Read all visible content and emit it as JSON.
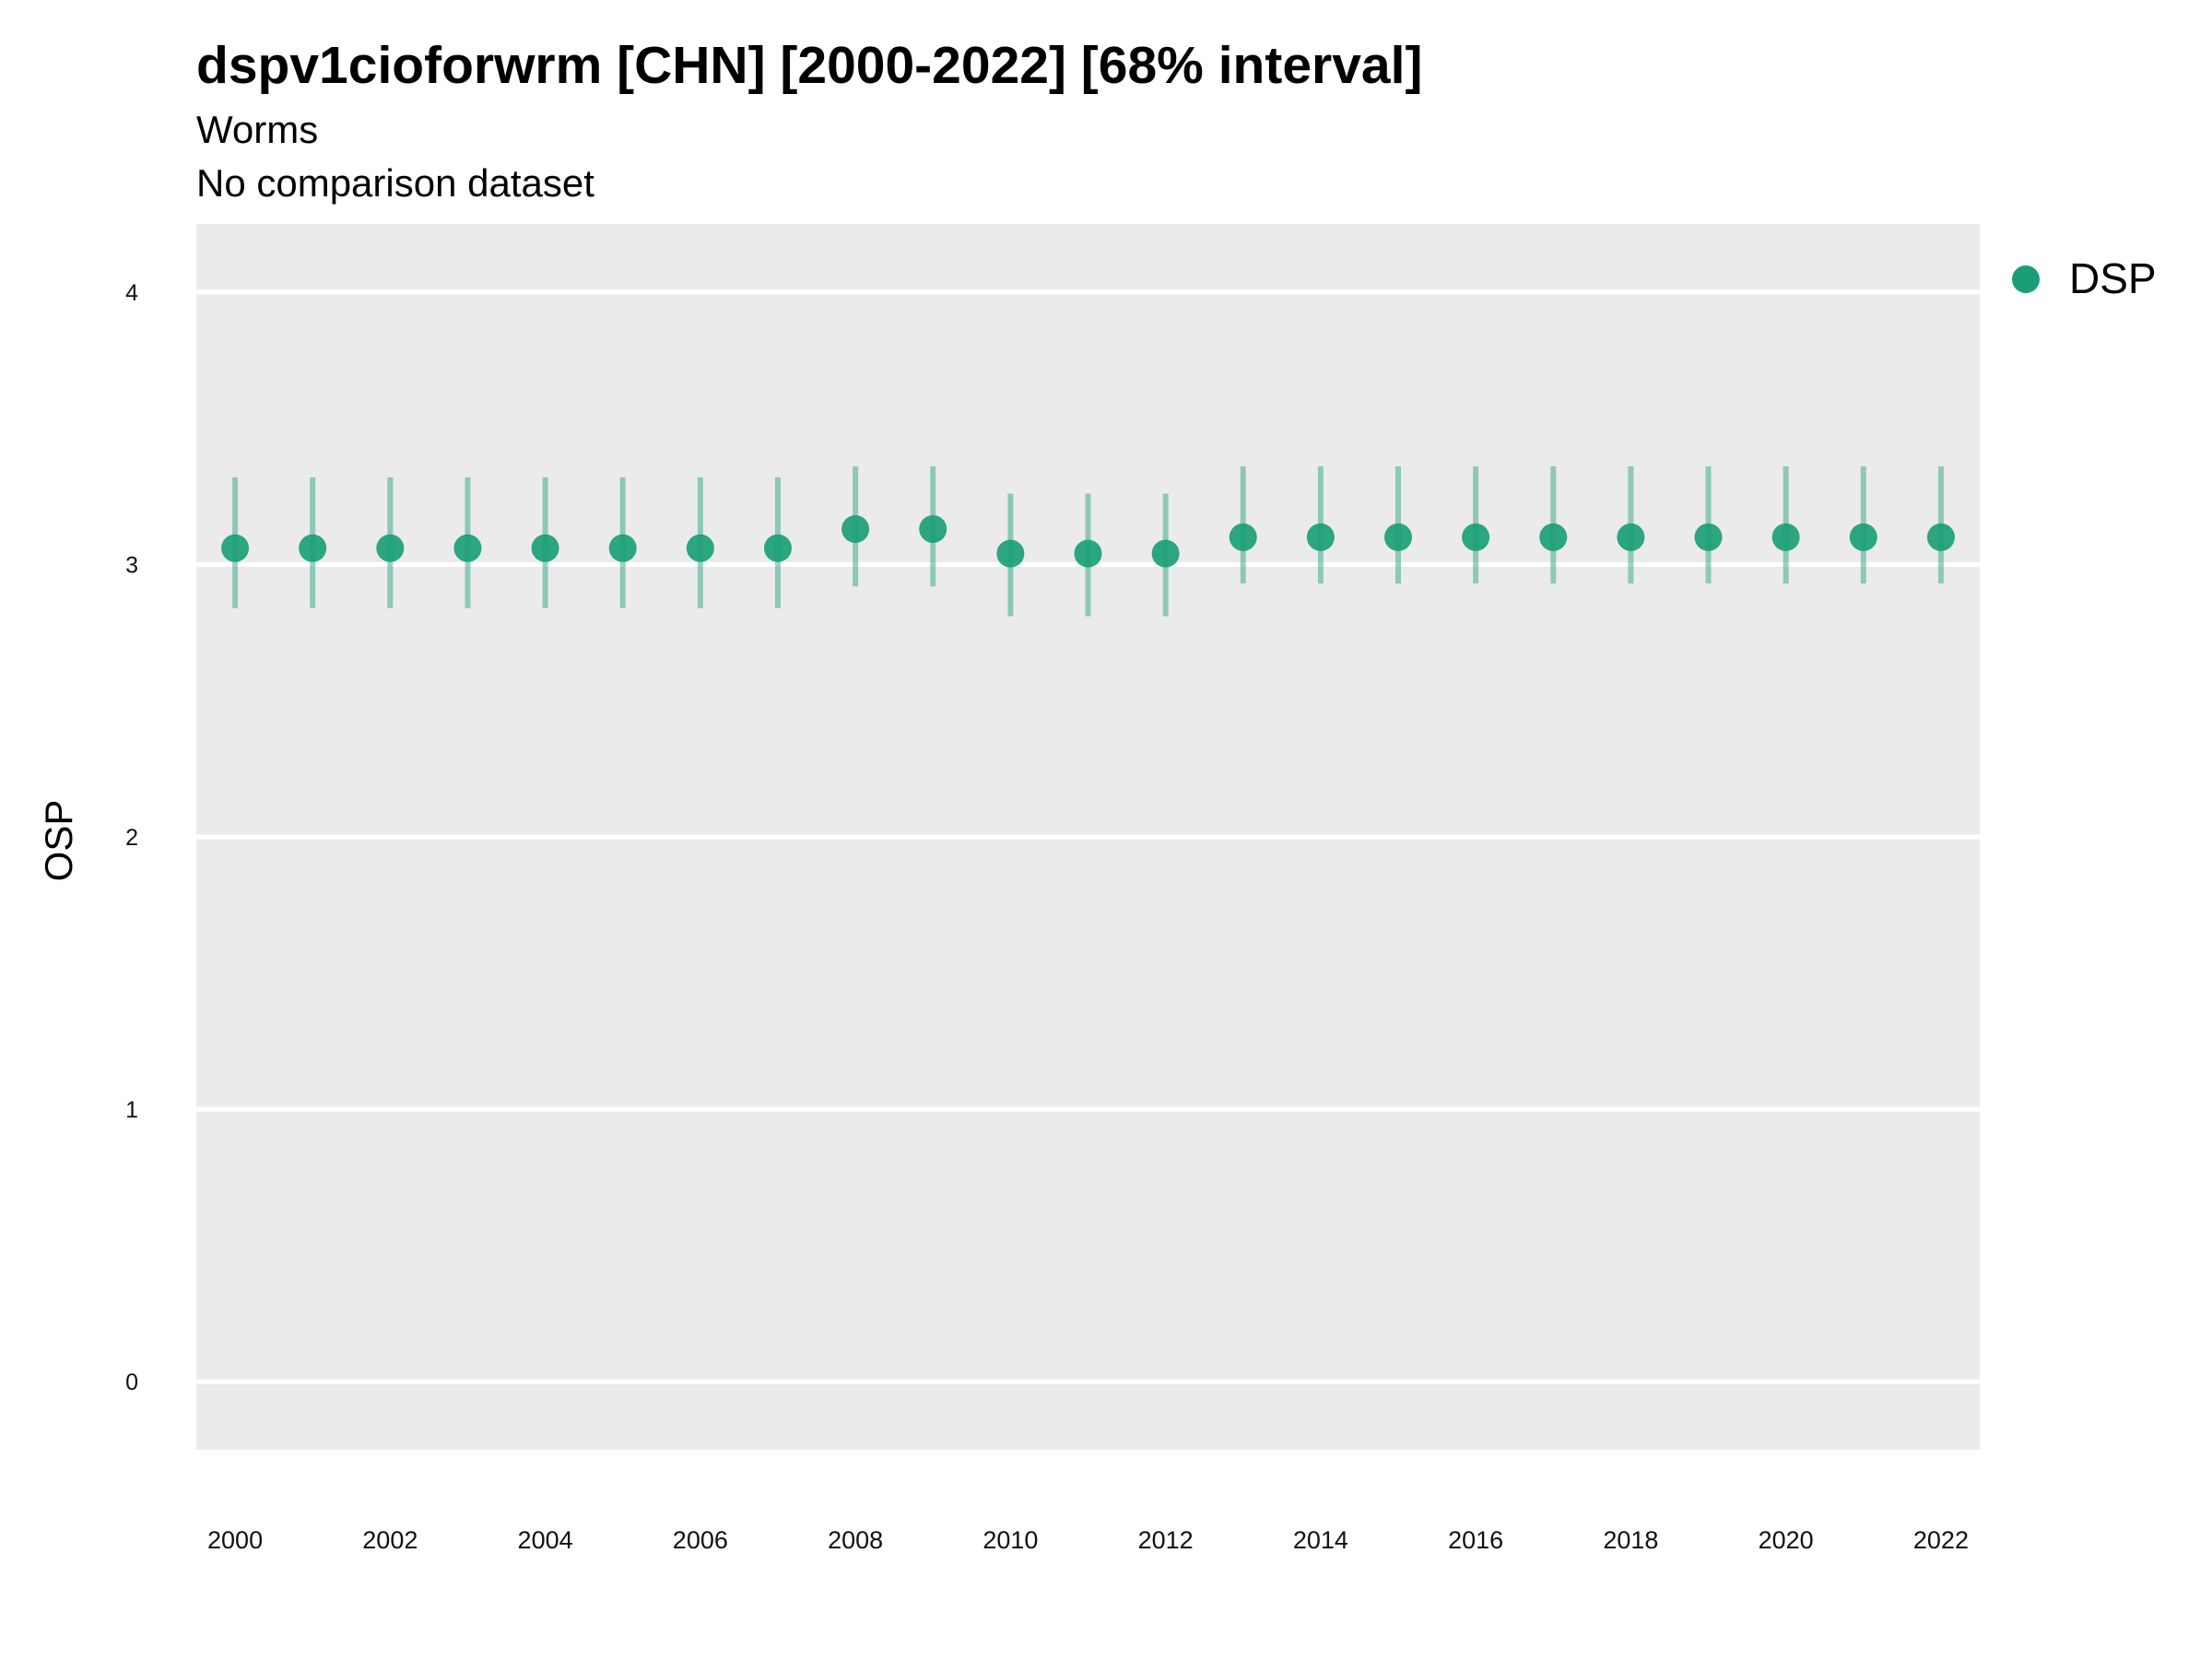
{
  "chart_data": {
    "type": "scatter",
    "title": "dspv1cioforwrm [CHN] [2000-2022] [68% interval]",
    "subtitle": "Worms",
    "subtitle2": "No comparison dataset",
    "xlabel": "",
    "ylabel": "OSP",
    "ylim": [
      -0.25,
      4.25
    ],
    "yticks": [
      0,
      1,
      2,
      3,
      4
    ],
    "xlim": [
      1999.5,
      2022.5
    ],
    "xticks": [
      2000,
      2002,
      2004,
      2006,
      2008,
      2010,
      2012,
      2014,
      2016,
      2018,
      2020,
      2022
    ],
    "grid": true,
    "legend_position": "right",
    "colors": {
      "series": "#1b9e77",
      "panel_background": "#ebebeb",
      "gridline": "#ffffff"
    },
    "series": [
      {
        "name": "DSP",
        "x": [
          2000,
          2001,
          2002,
          2003,
          2004,
          2005,
          2006,
          2007,
          2008,
          2009,
          2010,
          2011,
          2012,
          2013,
          2014,
          2015,
          2016,
          2017,
          2018,
          2019,
          2020,
          2021,
          2022
        ],
        "y": [
          3.06,
          3.06,
          3.06,
          3.06,
          3.06,
          3.06,
          3.06,
          3.06,
          3.13,
          3.13,
          3.04,
          3.04,
          3.04,
          3.1,
          3.1,
          3.1,
          3.1,
          3.1,
          3.1,
          3.1,
          3.1,
          3.1,
          3.1
        ],
        "lower": [
          2.84,
          2.84,
          2.84,
          2.84,
          2.84,
          2.84,
          2.84,
          2.84,
          2.92,
          2.92,
          2.81,
          2.81,
          2.81,
          2.93,
          2.93,
          2.93,
          2.93,
          2.93,
          2.93,
          2.93,
          2.93,
          2.93,
          2.93
        ],
        "upper": [
          3.32,
          3.32,
          3.32,
          3.32,
          3.32,
          3.32,
          3.32,
          3.32,
          3.36,
          3.36,
          3.26,
          3.26,
          3.26,
          3.36,
          3.36,
          3.36,
          3.36,
          3.36,
          3.36,
          3.36,
          3.36,
          3.36,
          3.36
        ]
      }
    ]
  }
}
